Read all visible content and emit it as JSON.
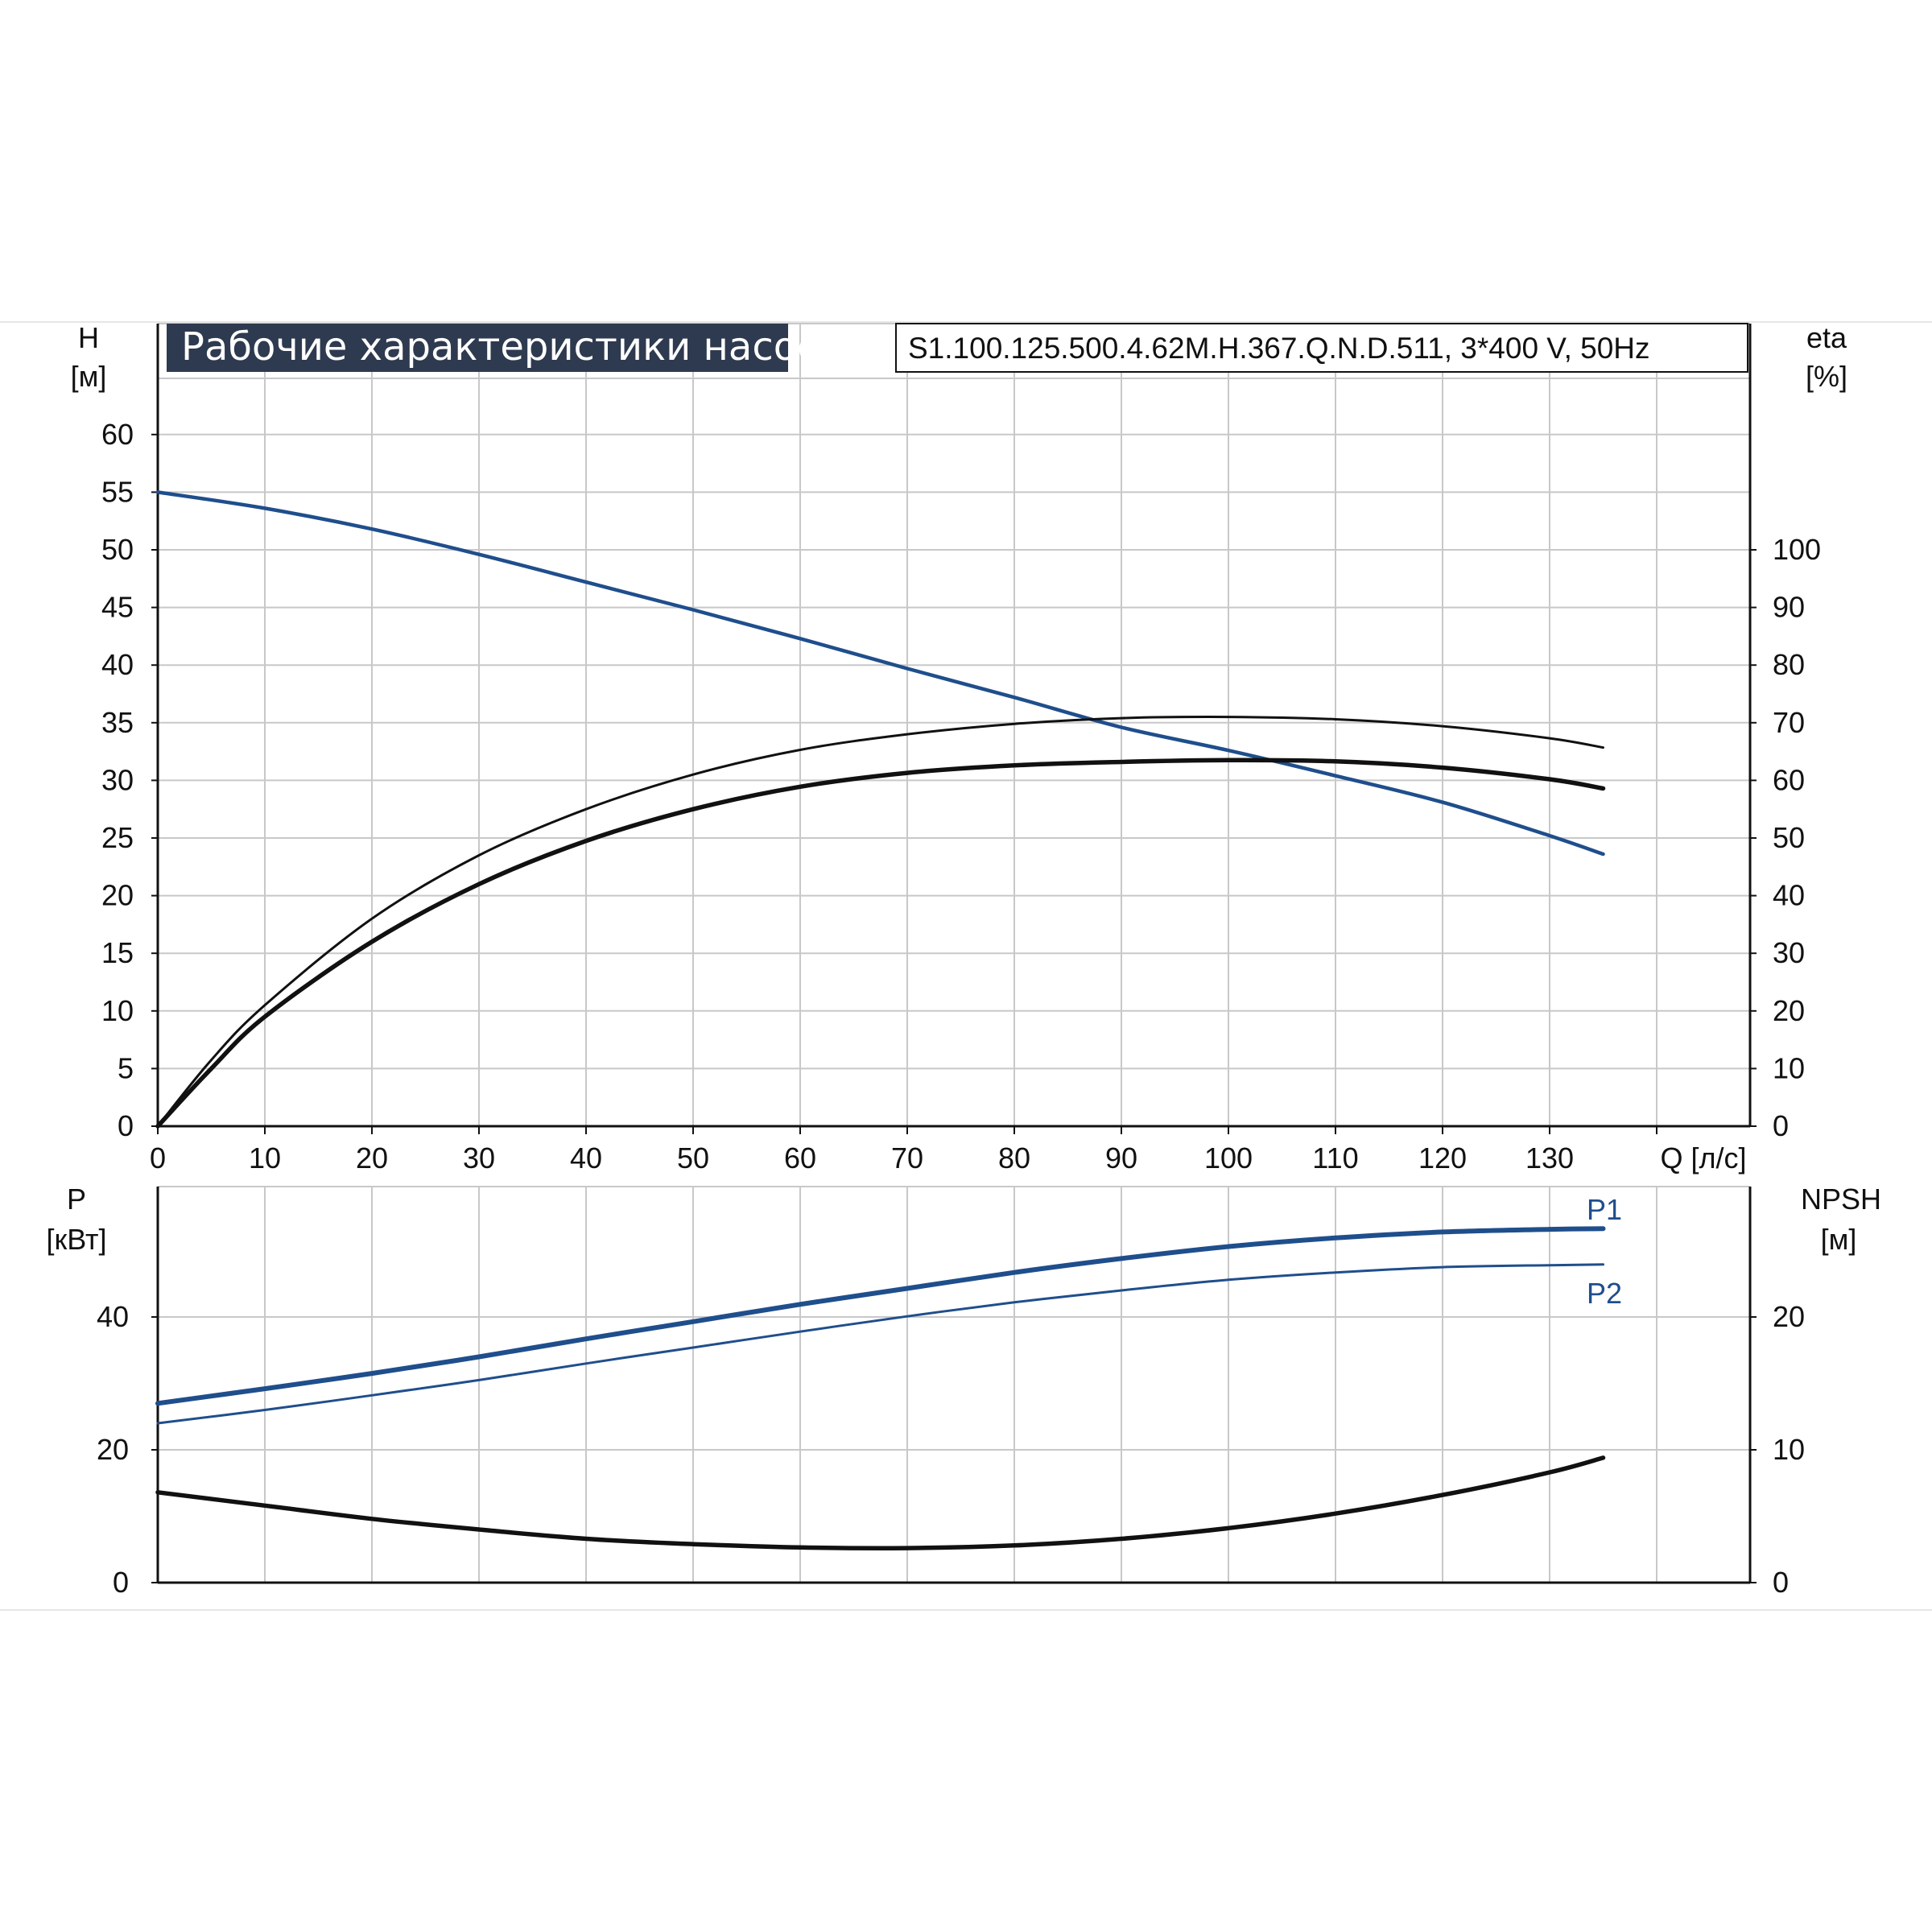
{
  "colors": {
    "accent_blue": "#1f4e8c",
    "curve_black": "#111111",
    "grid": "#c8c8c8",
    "title_bg": "#2e3a4f",
    "title_text": "#ffffff"
  },
  "header": {
    "title": "Рабочие характеристики насоса",
    "model": "S1.100.125.500.4.62M.H.367.Q.N.D.511, 3*400 V, 50Hz"
  },
  "chart_data": [
    {
      "type": "line",
      "xlabel": "Q [л/с]",
      "x_ticks": [
        "0",
        "10",
        "20",
        "30",
        "40",
        "50",
        "60",
        "70",
        "80",
        "90",
        "100",
        "110",
        "120",
        "130"
      ],
      "xlim": [
        0,
        148
      ],
      "left_axis": {
        "label_line1": "H",
        "label_line2": "[м]",
        "ylim": [
          0,
          65
        ],
        "ticks": [
          "0",
          "5",
          "10",
          "15",
          "20",
          "25",
          "30",
          "35",
          "40",
          "45",
          "50",
          "55",
          "60"
        ]
      },
      "right_axis": {
        "label_line1": "eta",
        "label_line2": "[%]",
        "ylim": [
          0,
          130
        ],
        "ticks": [
          "0",
          "10",
          "20",
          "30",
          "40",
          "50",
          "60",
          "70",
          "80",
          "90",
          "100"
        ]
      },
      "grid": true,
      "series": [
        {
          "axis": "left",
          "color": "#1f4e8c",
          "stroke": 4.5,
          "x": [
            0,
            10,
            20,
            30,
            40,
            50,
            60,
            70,
            80,
            90,
            100,
            110,
            120,
            130,
            135
          ],
          "y": [
            55,
            53.6,
            51.8,
            49.6,
            47.2,
            44.8,
            42.3,
            39.7,
            37.2,
            34.6,
            32.6,
            30.4,
            28.1,
            25.2,
            23.6
          ]
        },
        {
          "axis": "right",
          "color": "#111111",
          "stroke": 3,
          "x": [
            0,
            5,
            10,
            20,
            30,
            40,
            50,
            60,
            70,
            80,
            90,
            100,
            110,
            120,
            130,
            135
          ],
          "y": [
            0,
            11.5,
            21,
            36,
            47,
            55,
            61,
            65.3,
            68,
            69.8,
            70.8,
            71,
            70.6,
            69.4,
            67.3,
            65.7
          ]
        },
        {
          "axis": "right",
          "color": "#111111",
          "stroke": 5.5,
          "x": [
            0,
            5,
            10,
            20,
            30,
            40,
            50,
            60,
            70,
            80,
            90,
            100,
            110,
            120,
            130,
            135
          ],
          "y": [
            0,
            10,
            19,
            32,
            42,
            49.5,
            55,
            58.9,
            61.3,
            62.6,
            63.2,
            63.5,
            63.3,
            62.2,
            60.2,
            58.6
          ]
        }
      ]
    },
    {
      "type": "line",
      "left_axis": {
        "label_line1": "P",
        "label_line2": "[кВт]",
        "ylim": [
          0,
          60
        ],
        "ticks": [
          "0",
          "20",
          "40"
        ]
      },
      "right_axis": {
        "label_line1": "NPSH",
        "label_line2": "[м]",
        "ylim": [
          0,
          30
        ],
        "ticks": [
          "0",
          "10",
          "20"
        ]
      },
      "xlim": [
        0,
        148
      ],
      "grid": true,
      "series": [
        {
          "name": "P1",
          "axis": "left",
          "color": "#1f4e8c",
          "stroke": 6,
          "x": [
            0,
            10,
            20,
            30,
            40,
            50,
            60,
            70,
            80,
            90,
            100,
            110,
            120,
            130,
            135
          ],
          "y": [
            27,
            29.2,
            31.5,
            34,
            36.7,
            39.3,
            41.9,
            44.3,
            46.7,
            48.8,
            50.6,
            51.9,
            52.8,
            53.2,
            53.3
          ]
        },
        {
          "name": "P2",
          "axis": "left",
          "color": "#1f4e8c",
          "stroke": 3,
          "x": [
            0,
            10,
            20,
            30,
            40,
            50,
            60,
            70,
            80,
            90,
            100,
            110,
            120,
            130,
            135
          ],
          "y": [
            24,
            26,
            28.2,
            30.5,
            33,
            35.4,
            37.8,
            40.1,
            42.2,
            44,
            45.6,
            46.7,
            47.5,
            47.8,
            47.9
          ]
        },
        {
          "axis": "right",
          "color": "#111111",
          "stroke": 5.5,
          "x": [
            0,
            10,
            20,
            30,
            40,
            50,
            60,
            70,
            80,
            90,
            100,
            110,
            120,
            130,
            135
          ],
          "y": [
            6.8,
            5.8,
            4.8,
            4.0,
            3.3,
            2.9,
            2.65,
            2.6,
            2.8,
            3.3,
            4.1,
            5.2,
            6.6,
            8.3,
            9.4
          ]
        }
      ]
    }
  ]
}
